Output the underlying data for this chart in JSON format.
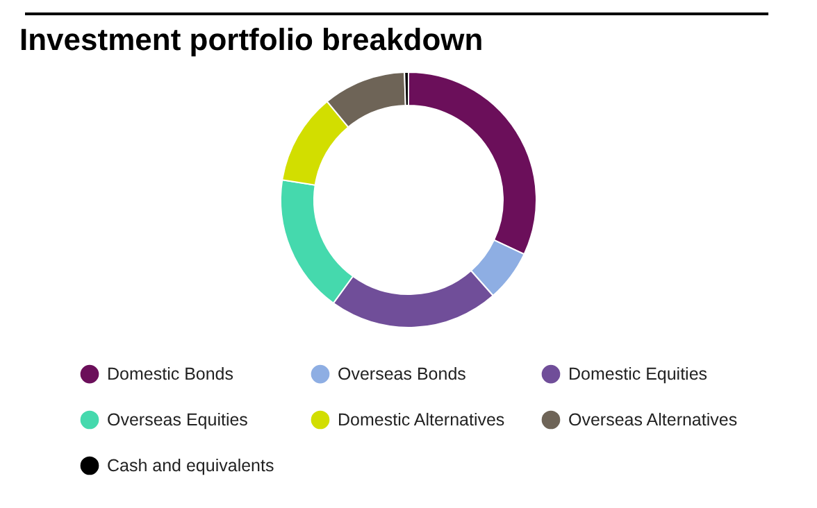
{
  "chart_data": {
    "type": "donut",
    "title": "Investment portfolio breakdown",
    "categories": [
      "Domestic Bonds",
      "Overseas Bonds",
      "Domestic Equities",
      "Overseas Equities",
      "Domestic Alternatives",
      "Overseas Alternatives",
      "Cash and equivalents"
    ],
    "values": [
      32,
      6.5,
      21.5,
      17.5,
      11.5,
      10.5,
      0.5
    ],
    "colors": [
      "#6b0f5a",
      "#8eaee3",
      "#704e99",
      "#45d9ad",
      "#d2de00",
      "#6e6457",
      "#000000"
    ],
    "legend": "bottom"
  }
}
